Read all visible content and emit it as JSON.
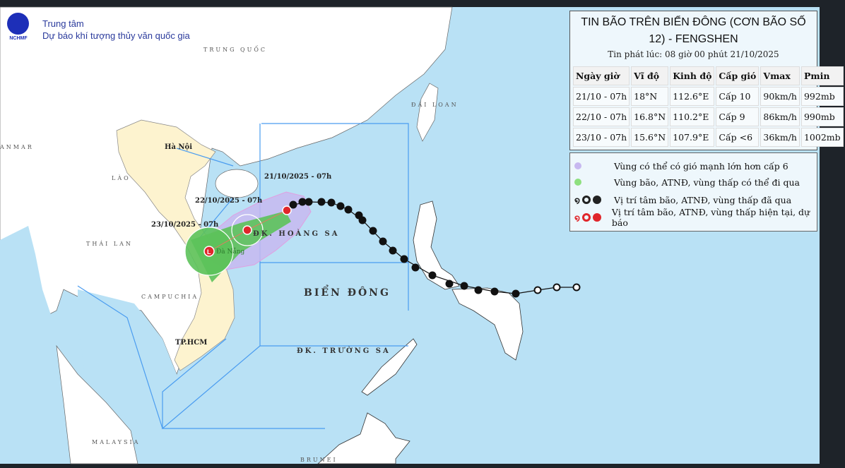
{
  "header": {
    "logo_text": "NCHMF",
    "org_line1": "Trung tâm",
    "org_line2": "Dự báo khí tượng thủy văn quốc gia"
  },
  "map_labels": {
    "china": "TRUNG QUỐC",
    "myanmar": "ANMAR",
    "hanoi": "Hà Nội",
    "laos": "LÀO",
    "thailand": "THÁI LAN",
    "cambodia": "CAMPUCHIA",
    "hcm": "TP.HCM",
    "taiwan": "ĐÀI LOAN",
    "east_sea": "BIỂN ĐÔNG",
    "paracel": "ĐK. HOÀNG SA",
    "spratly": "ĐK. TRƯỜNG SA",
    "malaysia": "MALAYSIA",
    "brunei": "BRUNEI",
    "danang": "Đà Nẵng",
    "t1": "21/10/2025 - 07h",
    "t2": "22/10/2025 - 07h",
    "t3": "23/10/2025 - 07h"
  },
  "colors": {
    "sea": "#b9e1f5",
    "vietnam": "#fdf3cf",
    "strong_wind_zone": "#c7b8f0",
    "storm_zone": "#5cc25a",
    "past": "#111111",
    "forecast": "#e0262b",
    "boundary": "#4a9cf0"
  },
  "panel": {
    "title": "TIN BÃO TRÊN BIỂN ĐÔNG (CƠN BÃO SỐ 12) - FENGSHEN",
    "issued": "Tin phát lúc: 08 giờ 00 phút 21/10/2025",
    "columns": [
      "Ngày giờ",
      "Vĩ độ",
      "Kinh độ",
      "Cấp gió",
      "Vmax",
      "Pmin"
    ],
    "rows": [
      [
        "21/10 - 07h",
        "18°N",
        "112.6°E",
        "Cấp 10",
        "90km/h",
        "992mb"
      ],
      [
        "22/10 - 07h",
        "16.8°N",
        "110.2°E",
        "Cấp 9",
        "86km/h",
        "990mb"
      ],
      [
        "23/10 - 07h",
        "15.6°N",
        "107.9°E",
        "Cấp <6",
        "36km/h",
        "1002mb"
      ]
    ]
  },
  "legend": {
    "items": [
      {
        "icon": "purple-dot",
        "label": "Vùng có thể có gió mạnh lớn hơn cấp 6"
      },
      {
        "icon": "green-dot",
        "label": "Vùng bão, ATNĐ, vùng thấp có thể đi qua"
      },
      {
        "icon": "black-storm-symbols",
        "label": "Vị trí tâm bão, ATNĐ, vùng thấp đã qua"
      },
      {
        "icon": "red-storm-symbols",
        "label": "Vị trí tâm bão, ATNĐ, vùng thấp hiện tại, dự báo"
      }
    ]
  }
}
